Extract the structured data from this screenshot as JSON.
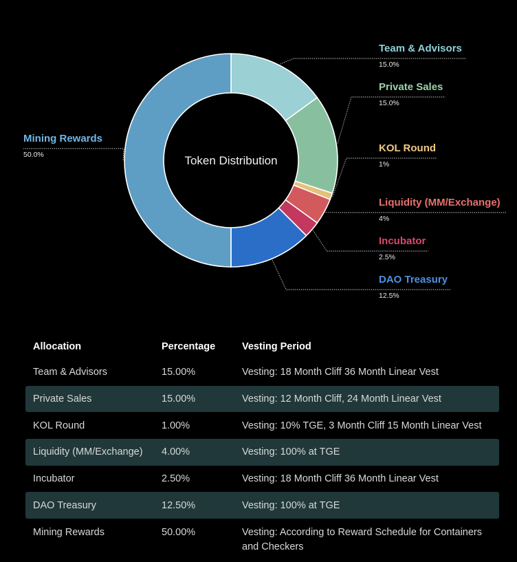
{
  "chart_data": {
    "type": "pie",
    "title": "Token Distribution",
    "slices": [
      {
        "label": "Team & Advisors",
        "pct_label": "15.0%",
        "value": 15.0,
        "color": "#9bd0d5",
        "label_color": "#8fd0da"
      },
      {
        "label": "Private Sales",
        "pct_label": "15.0%",
        "value": 15.0,
        "color": "#88c09f",
        "label_color": "#9ad4a8"
      },
      {
        "label": "KOL Round",
        "pct_label": "1%",
        "value": 1.0,
        "color": "#e6c07a",
        "label_color": "#f2c987"
      },
      {
        "label": "Liquidity (MM/Exchange)",
        "pct_label": "4%",
        "value": 4.0,
        "color": "#d2595c",
        "label_color": "#e8706c"
      },
      {
        "label": "Incubator",
        "pct_label": "2.5%",
        "value": 2.5,
        "color": "#c2385e",
        "label_color": "#d84a6b"
      },
      {
        "label": "DAO Treasury",
        "pct_label": "12.5%",
        "value": 12.5,
        "color": "#2a6ec8",
        "label_color": "#4d90e0"
      },
      {
        "label": "Mining Rewards",
        "pct_label": "50.0%",
        "value": 50.0,
        "color": "#5f9ec4",
        "label_color": "#72b6e6"
      }
    ]
  },
  "table": {
    "headers": [
      "Allocation",
      "Percentage",
      "Vesting Period"
    ],
    "rows": [
      {
        "allocation": "Team & Advisors",
        "percentage": "15.00%",
        "vesting": "Vesting: 18 Month Cliff 36 Month Linear Vest",
        "shaded": false
      },
      {
        "allocation": "Private Sales",
        "percentage": "15.00%",
        "vesting": " Vesting: 12 Month Cliff, 24 Month Linear Vest",
        "shaded": true
      },
      {
        "allocation": "KOL Round",
        "percentage": "1.00%",
        "vesting": "Vesting: 10% TGE, 3 Month Cliff 15 Month Linear Vest",
        "shaded": false
      },
      {
        "allocation": "Liquidity (MM/Exchange)",
        "percentage": "4.00%",
        "vesting": "Vesting: 100% at TGE",
        "shaded": true
      },
      {
        "allocation": "Incubator",
        "percentage": "2.50%",
        "vesting": " Vesting: 18 Month Cliff 36 Month Linear Vest",
        "shaded": false
      },
      {
        "allocation": "DAO Treasury",
        "percentage": "12.50%",
        "vesting": "Vesting: 100% at TGE",
        "shaded": true
      },
      {
        "allocation": "Mining Rewards",
        "percentage": "50.00%",
        "vesting": "Vesting: According to Reward Schedule for Containers and Checkers",
        "shaded": false
      }
    ]
  },
  "colors": {
    "background": "#000000",
    "row_shade": "#20383a"
  }
}
